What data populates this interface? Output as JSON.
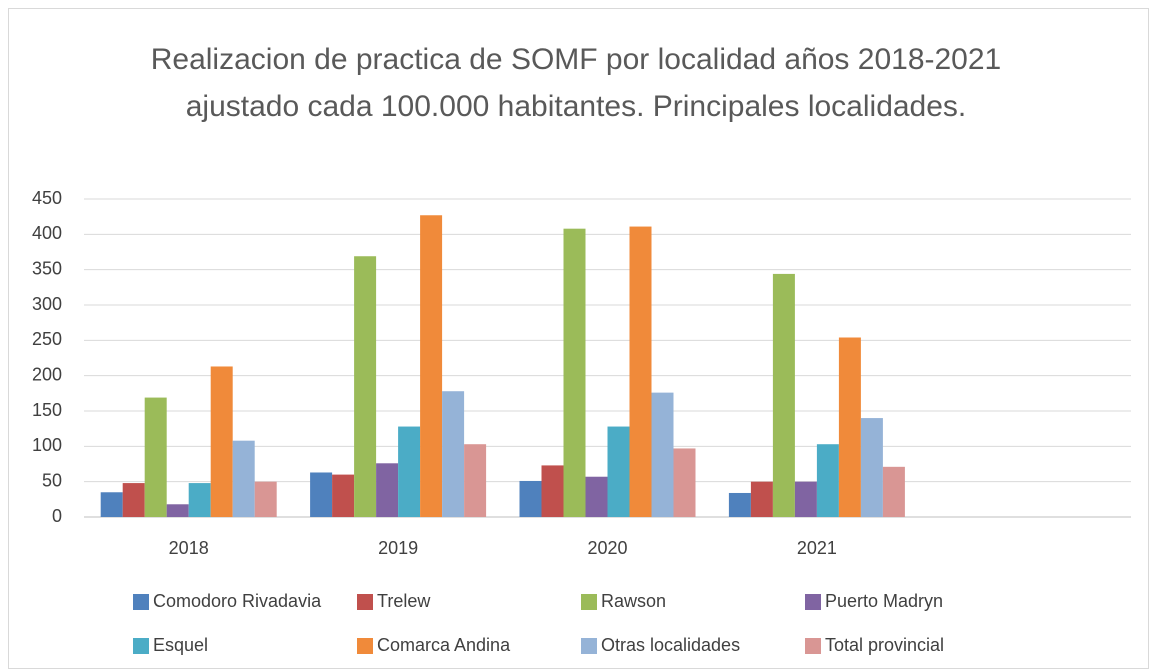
{
  "chart_data": {
    "type": "bar",
    "title": "Realizacion de practica de SOMF por localidad años 2018-2021 ajustado cada 100.000 habitantes. Principales localidades.",
    "categories": [
      "2018",
      "2019",
      "2020",
      "2021",
      null
    ],
    "series": [
      {
        "name": "Comodoro Rivadavia",
        "color": "#4f81bd",
        "values": [
          35,
          63,
          51,
          34,
          null
        ]
      },
      {
        "name": "Trelew",
        "color": "#c0504d",
        "values": [
          48,
          60,
          73,
          50,
          null
        ]
      },
      {
        "name": "Rawson",
        "color": "#9bbb59",
        "values": [
          169,
          369,
          408,
          344,
          null
        ]
      },
      {
        "name": "Puerto Madryn",
        "color": "#8064a2",
        "values": [
          18,
          76,
          57,
          50,
          null
        ]
      },
      {
        "name": "Esquel",
        "color": "#4bacc6",
        "values": [
          48,
          128,
          128,
          103,
          null
        ]
      },
      {
        "name": "Comarca Andina",
        "color": "#f08a3a",
        "values": [
          213,
          427,
          411,
          254,
          null
        ]
      },
      {
        "name": "Otras localidades",
        "color": "#95b3d7",
        "values": [
          108,
          178,
          176,
          140,
          null
        ]
      },
      {
        "name": "Total provincial",
        "color": "#d99694",
        "values": [
          50,
          103,
          97,
          71,
          null
        ]
      }
    ],
    "ylim": [
      0,
      450
    ],
    "yticks": [
      0,
      50,
      100,
      150,
      200,
      250,
      300,
      350,
      400,
      450
    ],
    "grid": true
  }
}
